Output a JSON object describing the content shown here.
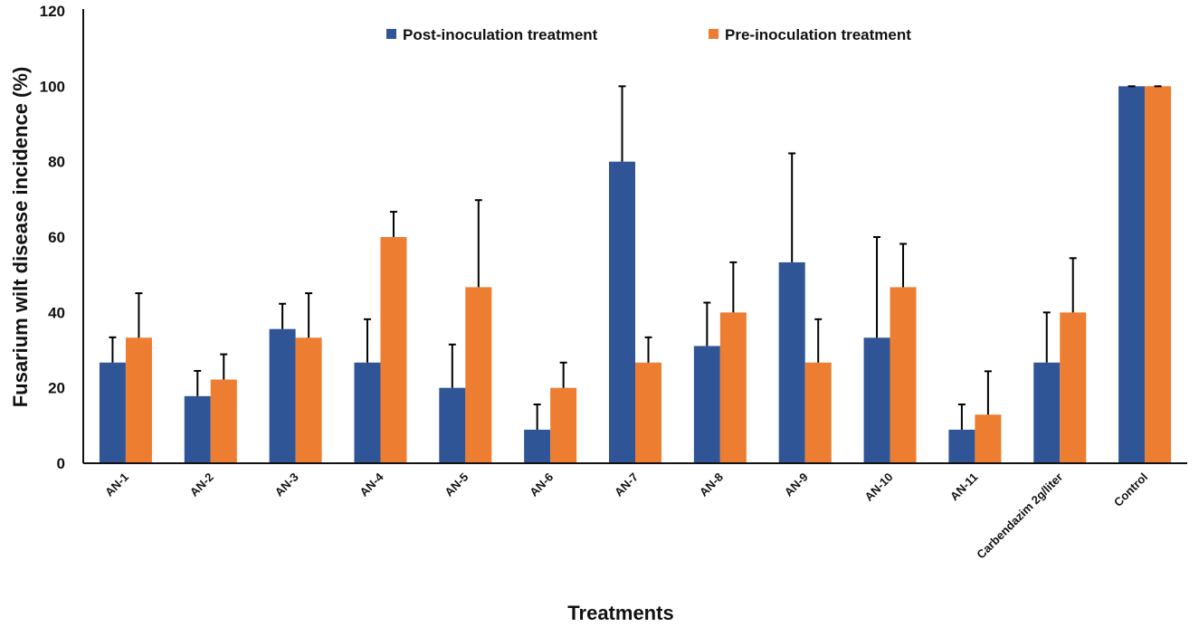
{
  "chart_data": {
    "type": "bar",
    "title": "",
    "xlabel": "Treatments",
    "ylabel": "Fusarium wilt disease incidence (%)",
    "ylim": [
      0,
      120
    ],
    "yticks": [
      "0",
      "20",
      "40",
      "60",
      "80",
      "100",
      "120"
    ],
    "grid": false,
    "legend_position": "top-center",
    "categories": [
      "AN-1",
      "AN-2",
      "AN-3",
      "AN-4",
      "AN-5",
      "AN-6",
      "AN-7",
      "AN-8",
      "AN-9",
      "AN-10",
      "AN-11",
      "Carbendazim 2g/liter",
      "Control"
    ],
    "series": [
      {
        "name": "Post-inoculation treatment",
        "color": "#2f5597",
        "values": [
          26.7,
          17.8,
          35.6,
          26.7,
          20.0,
          8.9,
          80.0,
          31.1,
          53.3,
          33.3,
          8.9,
          26.7,
          100
        ],
        "errors": [
          6.7,
          6.7,
          6.7,
          11.5,
          11.5,
          6.7,
          20.0,
          11.5,
          28.9,
          26.7,
          6.7,
          13.3,
          0
        ]
      },
      {
        "name": "Pre-inoculation treatment",
        "color": "#ed7d31",
        "values": [
          33.3,
          22.2,
          33.3,
          60.0,
          46.7,
          20.0,
          26.7,
          40.0,
          26.7,
          46.7,
          12.9,
          40.0,
          100
        ],
        "errors": [
          11.8,
          6.7,
          11.8,
          6.7,
          23.1,
          6.7,
          6.7,
          13.3,
          11.5,
          11.5,
          11.5,
          14.4,
          0
        ]
      }
    ]
  }
}
